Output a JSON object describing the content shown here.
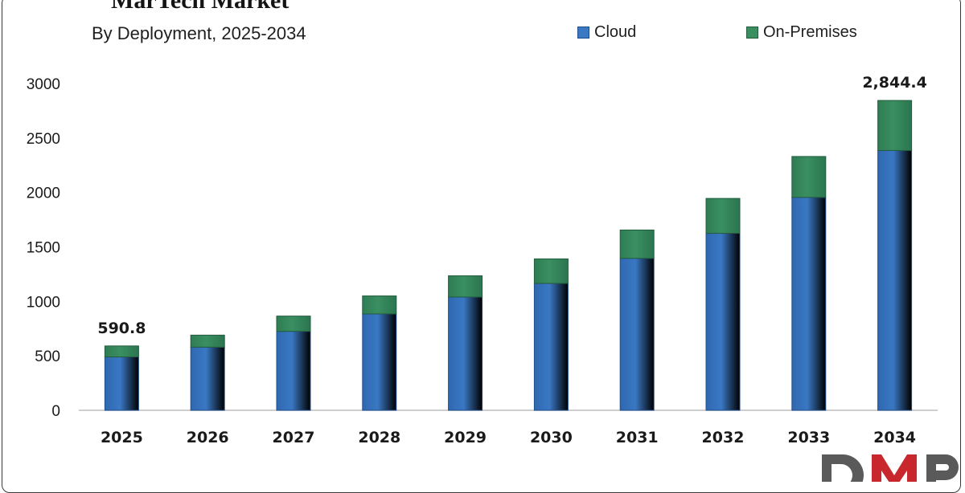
{
  "title": "MarTech Market",
  "subtitle": "By Deployment, 2025-2034",
  "colors": {
    "cloud": "#3a78c4",
    "on_premises": "#3a8f61",
    "logo_red": "#c8282d",
    "logo_gray": "#5a5a5a"
  },
  "logo": {
    "text": "DMR",
    "icon": "dmr-logo"
  },
  "chart_data": {
    "type": "bar",
    "stacked": true,
    "title": "MarTech Market",
    "subtitle": "By Deployment, 2025-2034",
    "xlabel": "",
    "ylabel": "",
    "categories": [
      "2025",
      "2026",
      "2027",
      "2028",
      "2029",
      "2030",
      "2031",
      "2032",
      "2033",
      "2034"
    ],
    "series": [
      {
        "name": "Cloud",
        "values": [
          490,
          580,
          725,
          885,
          1040,
          1165,
          1395,
          1625,
          1955,
          2385
        ]
      },
      {
        "name": "On-Premises",
        "values": [
          100.8,
          110,
          140,
          165,
          195,
          225,
          260,
          320,
          375,
          459.4
        ]
      }
    ],
    "ylim": [
      0,
      3000
    ],
    "yticks": [
      "0",
      "500",
      "1000",
      "1500",
      "2000",
      "2500",
      "3000"
    ],
    "data_labels": {
      "2025": "590.8",
      "2034": "2,844.4"
    },
    "grid": false,
    "legend": "top-right"
  }
}
